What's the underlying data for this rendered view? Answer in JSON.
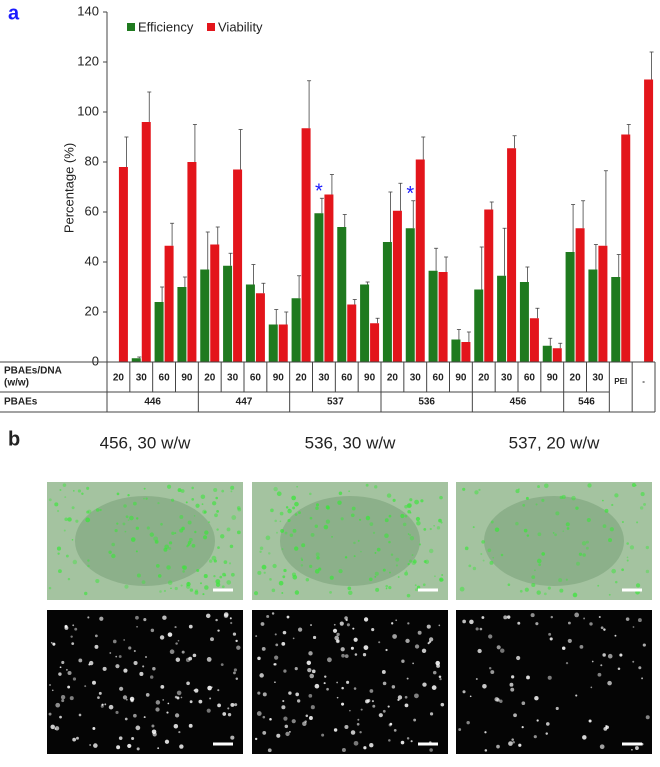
{
  "chart_data": {
    "type": "bar",
    "panel_label": "a",
    "ylabel": "Percentage (%)",
    "ylim": [
      0,
      140
    ],
    "yticks": [
      0,
      20,
      40,
      60,
      80,
      100,
      120,
      140
    ],
    "legend": "upper left",
    "categories": [
      "20",
      "30",
      "60",
      "90",
      "20",
      "30",
      "60",
      "90",
      "20",
      "30",
      "60",
      "90",
      "20",
      "30",
      "60",
      "90",
      "20",
      "30",
      "60",
      "90",
      "20",
      "30",
      "PEI",
      "-"
    ],
    "groups": [
      {
        "name": "446",
        "size": 4
      },
      {
        "name": "447",
        "size": 4
      },
      {
        "name": "537",
        "size": 4
      },
      {
        "name": "536",
        "size": 4
      },
      {
        "name": "456",
        "size": 4
      },
      {
        "name": "546",
        "size": 2
      }
    ],
    "row_labels": {
      "ratio": [
        "PBAEs/DNA",
        "(w/w)"
      ],
      "polymer": "PBAEs"
    },
    "series": [
      {
        "name": "Efficiency",
        "color": "#1f7a1f",
        "values": [
          null,
          1.5,
          24,
          30,
          37,
          38.5,
          31,
          15,
          25.5,
          59.5,
          54,
          31,
          48,
          53.5,
          36.5,
          9,
          29,
          34.5,
          32,
          6.5,
          44,
          37,
          34,
          null
        ],
        "errors": [
          null,
          0.5,
          6,
          4,
          15,
          5,
          8,
          6,
          9,
          6,
          5,
          1,
          20,
          11,
          9,
          4,
          17,
          19,
          6,
          3,
          19,
          10,
          9,
          null
        ]
      },
      {
        "name": "Viability",
        "color": "#e3151b",
        "values": [
          78,
          96,
          46.5,
          80,
          47,
          77,
          27.5,
          15,
          93.5,
          67,
          23,
          15.5,
          60.5,
          81,
          36,
          8,
          61,
          85.5,
          17.5,
          5.5,
          53.5,
          46.5,
          91,
          113
        ],
        "errors": [
          12,
          12,
          9,
          15,
          7,
          16,
          4,
          5,
          19,
          8,
          2,
          2,
          11,
          9,
          6,
          4,
          3,
          5,
          4,
          2,
          11,
          30,
          4,
          11
        ]
      }
    ],
    "annotations": [
      {
        "text": "*",
        "series": 0,
        "category": 9
      },
      {
        "text": "*",
        "series": 0,
        "category": 13
      }
    ]
  },
  "panel_b": {
    "label": "b",
    "images": [
      {
        "title": "456, 30 w/w"
      },
      {
        "title": "536, 30 w/w"
      },
      {
        "title": "537, 20 w/w"
      }
    ]
  }
}
